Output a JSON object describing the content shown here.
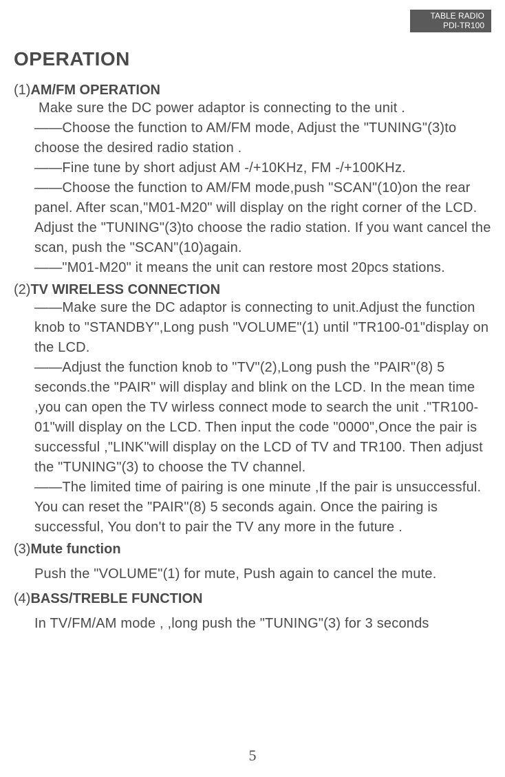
{
  "header": {
    "line1": "TABLE RADIO",
    "line2": "PDI-TR100"
  },
  "heading": "OPERATION",
  "sections": [
    {
      "num": "(1)",
      "title": "AM/FM OPERATION",
      "body": " Make sure the DC power adaptor is connecting to the unit .\n——Choose the function to AM/FM mode, Adjust the \"TUNING\"(3)to choose the desired radio station .\n——Fine tune by short adjust AM -/+10KHz, FM -/+100KHz.\n——Choose the function to AM/FM mode,push \"SCAN\"(10)on the rear panel. After scan,\"M01-M20\" will display on the right corner of the LCD. Adjust the \"TUNING\"(3)to choose the radio station. If you want cancel the scan, push the \"SCAN\"(10)again.\n——\"M01-M20\" it means the unit can restore most  20pcs stations."
    },
    {
      "num": "(2)",
      "title": "TV WIRELESS CONNECTION",
      "body": "——Make sure the DC adaptor is connecting to unit.Adjust the function knob to \"STANDBY\",Long push \"VOLUME\"(1) until \"TR100-01\"display on the LCD.\n——Adjust the function knob to \"TV\"(2),Long push the \"PAIR\"(8) 5 seconds.the \"PAIR\" will display and blink  on the LCD. In the mean time ,you can open the TV wirless connect mode  to search the unit .\"TR100-01\"will display on the LCD. Then input the code \"0000\",Once the pair is successful ,\"LINK\"will display on the LCD of TV and TR100. Then adjust the \"TUNING\"(3) to choose the TV channel.\n——The limited  time of pairing is one minute ,If the pair is unsuccessful. You can reset  the \"PAIR\"(8) 5 seconds again. Once the pairing  is successful, You don't to pair the TV any more in the future ."
    },
    {
      "num": "(3)",
      "title": "Mute function",
      "body": "Push the \"VOLUME\"(1) for mute, Push again to cancel the mute."
    },
    {
      "num": "(4)",
      "title": "BASS/TREBLE FUNCTION",
      "body": "In TV/FM/AM mode , ,long push  the \"TUNING\"(3) for 3 seconds"
    }
  ],
  "page_number": "5",
  "colors": {
    "text": "#4a4a4a",
    "header_bg": "#5a5a5a",
    "header_text": "#ffffff",
    "background": "#ffffff"
  },
  "typography": {
    "heading_fontsize": 28,
    "section_title_fontsize": 20,
    "body_fontsize": 20,
    "header_fontsize": 12,
    "page_num_fontsize": 22,
    "font_family": "Arial"
  }
}
